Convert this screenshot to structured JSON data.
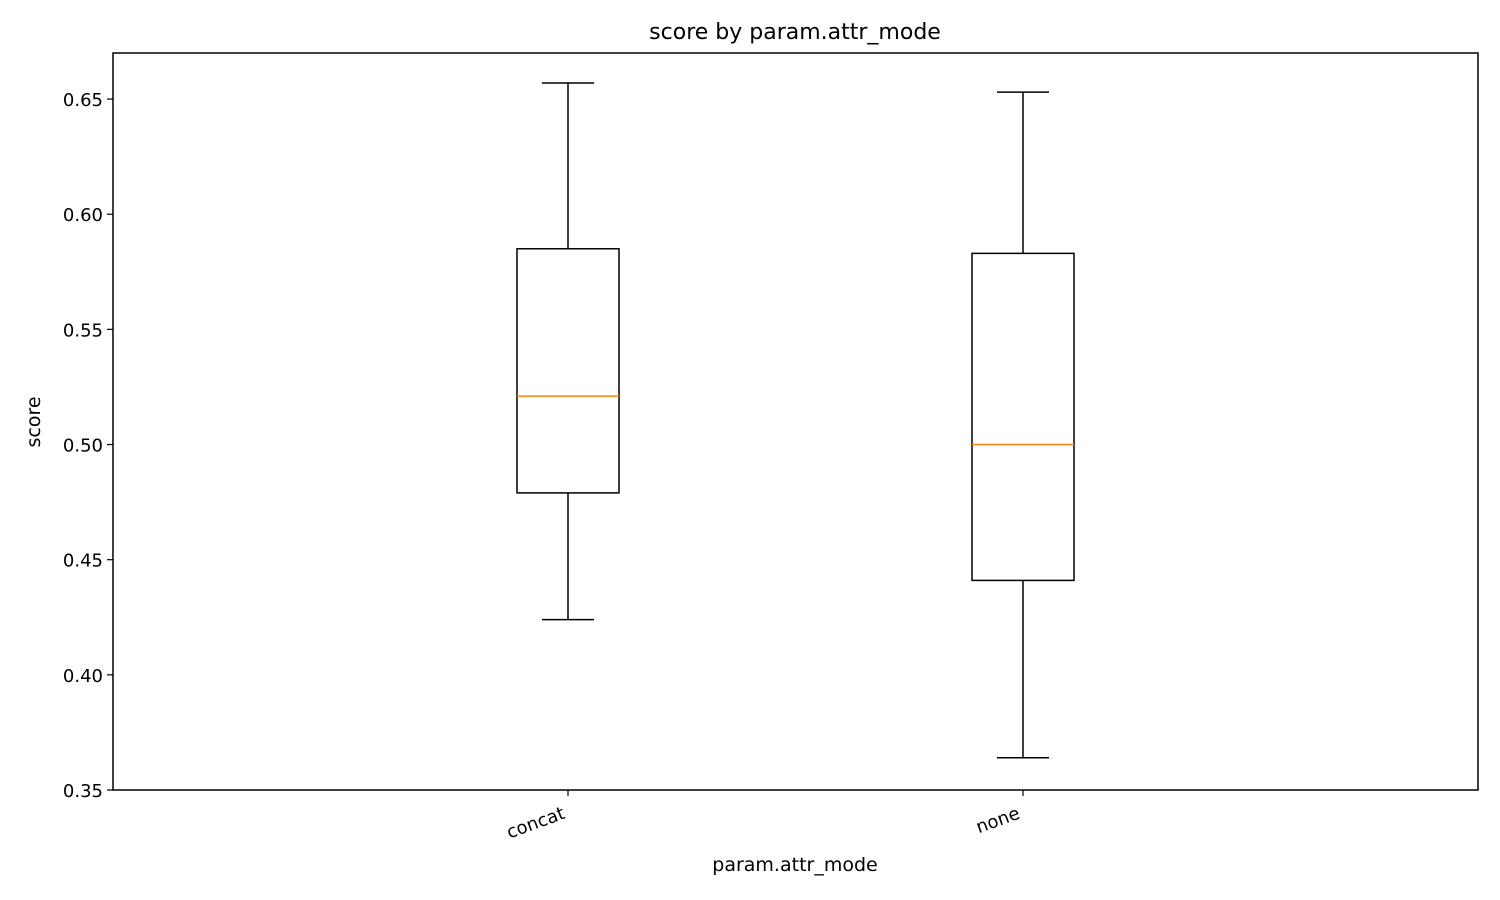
{
  "chart_data": {
    "type": "box",
    "title": "score by param.attr_mode",
    "xlabel": "param.attr_mode",
    "ylabel": "score",
    "ylim": [
      0.35,
      0.67
    ],
    "yticks": [
      0.35,
      0.4,
      0.45,
      0.5,
      0.55,
      0.6,
      0.65
    ],
    "ytick_labels": [
      "0.35",
      "0.40",
      "0.45",
      "0.50",
      "0.55",
      "0.60",
      "0.65"
    ],
    "categories": [
      "concat",
      "none"
    ],
    "boxes": [
      {
        "category": "concat",
        "whisker_low": 0.424,
        "q1": 0.479,
        "median": 0.521,
        "q3": 0.585,
        "whisker_high": 0.657
      },
      {
        "category": "none",
        "whisker_low": 0.364,
        "q1": 0.441,
        "median": 0.5,
        "q3": 0.583,
        "whisker_high": 0.653
      }
    ],
    "grid": false,
    "colors": {
      "box": "#000000",
      "median": "#ff7f0e"
    }
  }
}
